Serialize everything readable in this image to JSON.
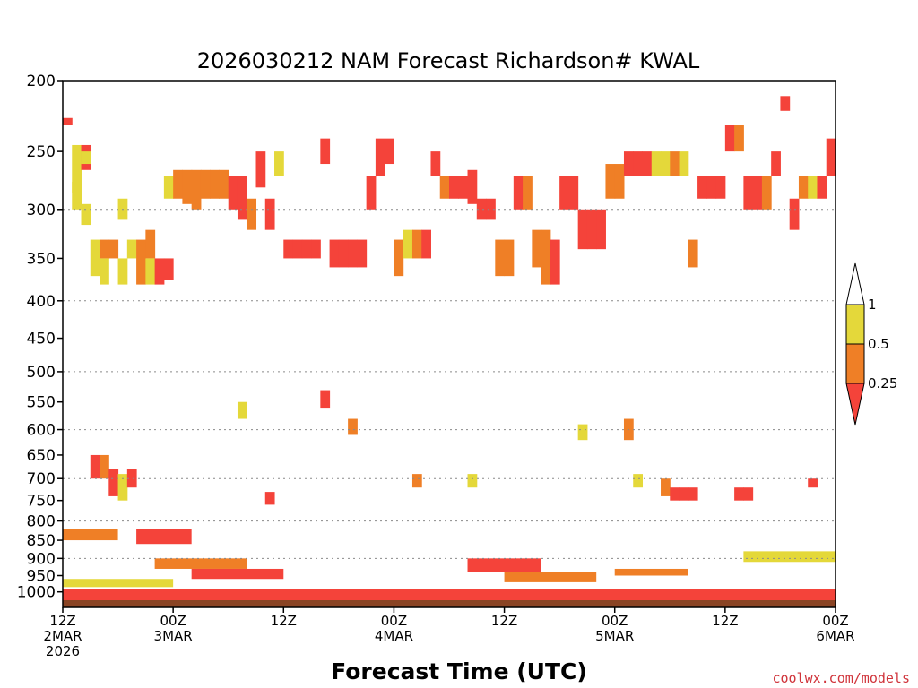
{
  "chart_data": {
    "type": "heatmap",
    "title": "2026030212 NAM Forecast Richardson# KWAL",
    "xlabel": "Forecast Time (UTC)",
    "ylabel": "",
    "credit": "coolwx.com/models",
    "y_scale": "log-pressure",
    "ylim": [
      1050,
      200
    ],
    "xlim_hours": [
      0,
      84
    ],
    "y_ticks": [
      200,
      250,
      300,
      350,
      400,
      450,
      500,
      550,
      600,
      650,
      700,
      750,
      800,
      850,
      900,
      950,
      1000
    ],
    "x_ticks": [
      {
        "hour": 0,
        "line1": "12Z",
        "line2": "2MAR",
        "line3": "2026"
      },
      {
        "hour": 12,
        "line1": "00Z",
        "line2": "3MAR",
        "line3": ""
      },
      {
        "hour": 24,
        "line1": "12Z",
        "line2": "",
        "line3": ""
      },
      {
        "hour": 36,
        "line1": "00Z",
        "line2": "4MAR",
        "line3": ""
      },
      {
        "hour": 48,
        "line1": "12Z",
        "line2": "",
        "line3": ""
      },
      {
        "hour": 60,
        "line1": "00Z",
        "line2": "5MAR",
        "line3": ""
      },
      {
        "hour": 72,
        "line1": "12Z",
        "line2": "",
        "line3": ""
      },
      {
        "hour": 84,
        "line1": "00Z",
        "line2": "6MAR",
        "line3": ""
      }
    ],
    "dotted_gridlines_hPa": [
      300,
      400,
      500,
      600,
      700,
      800,
      900
    ],
    "legend": {
      "labels": [
        "1",
        "0.5",
        "0.25"
      ],
      "bins": [
        {
          "range": "> 1",
          "color": "#ffffff"
        },
        {
          "range": "0.5 - 1",
          "color": "#e4d83a"
        },
        {
          "range": "0.25 - 0.5",
          "color": "#ef7f26"
        },
        {
          "range": "< 0.25",
          "color": "#f4433a"
        }
      ]
    },
    "colors": {
      "low": "#f4433a",
      "mid": "#ef7f26",
      "high": "#e4d83a",
      "ground": "#8a4424"
    },
    "category_codes": {
      "1": "Ri 0.5-1",
      "2": "Ri 0.25-0.5",
      "3": "Ri < 0.25"
    },
    "cells": [
      {
        "h": 0,
        "p": [
          225,
          230
        ],
        "c": 3
      },
      {
        "h": 1,
        "p": [
          245,
          300
        ],
        "c": 1
      },
      {
        "h": 1,
        "p": [
          275,
          285
        ],
        "c": 1
      },
      {
        "h": 2,
        "p": [
          245,
          265
        ],
        "c": 3
      },
      {
        "h": 2,
        "p": [
          250,
          260
        ],
        "c": 1
      },
      {
        "h": 2,
        "p": [
          295,
          315
        ],
        "c": 1
      },
      {
        "h": 3,
        "p": [
          330,
          370
        ],
        "c": 1
      },
      {
        "h": 4,
        "p": [
          330,
          350
        ],
        "c": 2
      },
      {
        "h": 4,
        "p": [
          350,
          380
        ],
        "c": 1
      },
      {
        "h": 5,
        "p": [
          330,
          350
        ],
        "c": 2
      },
      {
        "h": 6,
        "p": [
          290,
          310
        ],
        "c": 1
      },
      {
        "h": 6,
        "p": [
          350,
          380
        ],
        "c": 1
      },
      {
        "h": 7,
        "p": [
          330,
          350
        ],
        "c": 1
      },
      {
        "h": 8,
        "p": [
          330,
          380
        ],
        "c": 2
      },
      {
        "h": 9,
        "p": [
          320,
          350
        ],
        "c": 2
      },
      {
        "h": 9,
        "p": [
          350,
          380
        ],
        "c": 1
      },
      {
        "h": 10,
        "p": [
          350,
          380
        ],
        "c": 3
      },
      {
        "h": 11,
        "p": [
          270,
          290
        ],
        "c": 1
      },
      {
        "h": 11,
        "p": [
          350,
          375
        ],
        "c": 3
      },
      {
        "h": 12,
        "p": [
          265,
          290
        ],
        "c": 2
      },
      {
        "h": 13,
        "p": [
          265,
          295
        ],
        "c": 2
      },
      {
        "h": 14,
        "p": [
          265,
          300
        ],
        "c": 2
      },
      {
        "h": 15,
        "p": [
          265,
          290
        ],
        "c": 2
      },
      {
        "h": 16,
        "p": [
          265,
          290
        ],
        "c": 2
      },
      {
        "h": 17,
        "p": [
          265,
          290
        ],
        "c": 2
      },
      {
        "h": 18,
        "p": [
          270,
          300
        ],
        "c": 3
      },
      {
        "h": 19,
        "p": [
          270,
          310
        ],
        "c": 3
      },
      {
        "h": 20,
        "p": [
          290,
          320
        ],
        "c": 2
      },
      {
        "h": 21,
        "p": [
          250,
          280
        ],
        "c": 3
      },
      {
        "h": 22,
        "p": [
          290,
          320
        ],
        "c": 3
      },
      {
        "h": 23,
        "p": [
          250,
          270
        ],
        "c": 1
      },
      {
        "h": 24,
        "p": [
          330,
          350
        ],
        "c": 3
      },
      {
        "h": 25,
        "p": [
          330,
          350
        ],
        "c": 3
      },
      {
        "h": 26,
        "p": [
          330,
          350
        ],
        "c": 3
      },
      {
        "h": 27,
        "p": [
          330,
          350
        ],
        "c": 3
      },
      {
        "h": 28,
        "p": [
          240,
          260
        ],
        "c": 3
      },
      {
        "h": 29,
        "p": [
          330,
          360
        ],
        "c": 3
      },
      {
        "h": 30,
        "p": [
          330,
          360
        ],
        "c": 3
      },
      {
        "h": 31,
        "p": [
          330,
          360
        ],
        "c": 3
      },
      {
        "h": 32,
        "p": [
          330,
          360
        ],
        "c": 3
      },
      {
        "h": 33,
        "p": [
          270,
          300
        ],
        "c": 3
      },
      {
        "h": 34,
        "p": [
          240,
          270
        ],
        "c": 3
      },
      {
        "h": 35,
        "p": [
          240,
          260
        ],
        "c": 3
      },
      {
        "h": 36,
        "p": [
          330,
          370
        ],
        "c": 2
      },
      {
        "h": 37,
        "p": [
          320,
          350
        ],
        "c": 1
      },
      {
        "h": 38,
        "p": [
          320,
          350
        ],
        "c": 2
      },
      {
        "h": 39,
        "p": [
          320,
          350
        ],
        "c": 3
      },
      {
        "h": 40,
        "p": [
          250,
          270
        ],
        "c": 3
      },
      {
        "h": 41,
        "p": [
          270,
          290
        ],
        "c": 2
      },
      {
        "h": 42,
        "p": [
          270,
          290
        ],
        "c": 3
      },
      {
        "h": 43,
        "p": [
          270,
          290
        ],
        "c": 3
      },
      {
        "h": 44,
        "p": [
          265,
          295
        ],
        "c": 3
      },
      {
        "h": 45,
        "p": [
          290,
          310
        ],
        "c": 3
      },
      {
        "h": 46,
        "p": [
          290,
          310
        ],
        "c": 3
      },
      {
        "h": 47,
        "p": [
          330,
          370
        ],
        "c": 2
      },
      {
        "h": 48,
        "p": [
          330,
          370
        ],
        "c": 2
      },
      {
        "h": 49,
        "p": [
          270,
          300
        ],
        "c": 3
      },
      {
        "h": 50,
        "p": [
          270,
          300
        ],
        "c": 2
      },
      {
        "h": 51,
        "p": [
          320,
          360
        ],
        "c": 2
      },
      {
        "h": 52,
        "p": [
          320,
          380
        ],
        "c": 2
      },
      {
        "h": 53,
        "p": [
          330,
          380
        ],
        "c": 3
      },
      {
        "h": 54,
        "p": [
          270,
          300
        ],
        "c": 3
      },
      {
        "h": 55,
        "p": [
          270,
          300
        ],
        "c": 3
      },
      {
        "h": 56,
        "p": [
          300,
          340
        ],
        "c": 3
      },
      {
        "h": 57,
        "p": [
          300,
          340
        ],
        "c": 3
      },
      {
        "h": 58,
        "p": [
          300,
          340
        ],
        "c": 3
      },
      {
        "h": 59,
        "p": [
          260,
          290
        ],
        "c": 2
      },
      {
        "h": 60,
        "p": [
          260,
          290
        ],
        "c": 2
      },
      {
        "h": 61,
        "p": [
          250,
          270
        ],
        "c": 3
      },
      {
        "h": 62,
        "p": [
          250,
          270
        ],
        "c": 3
      },
      {
        "h": 63,
        "p": [
          250,
          270
        ],
        "c": 3
      },
      {
        "h": 64,
        "p": [
          250,
          270
        ],
        "c": 1
      },
      {
        "h": 65,
        "p": [
          250,
          270
        ],
        "c": 1
      },
      {
        "h": 66,
        "p": [
          250,
          270
        ],
        "c": 2
      },
      {
        "h": 67,
        "p": [
          250,
          270
        ],
        "c": 1
      },
      {
        "h": 68,
        "p": [
          330,
          360
        ],
        "c": 2
      },
      {
        "h": 69,
        "p": [
          270,
          290
        ],
        "c": 3
      },
      {
        "h": 70,
        "p": [
          270,
          290
        ],
        "c": 3
      },
      {
        "h": 71,
        "p": [
          270,
          290
        ],
        "c": 3
      },
      {
        "h": 72,
        "p": [
          230,
          250
        ],
        "c": 3
      },
      {
        "h": 73,
        "p": [
          230,
          250
        ],
        "c": 2
      },
      {
        "h": 74,
        "p": [
          270,
          300
        ],
        "c": 3
      },
      {
        "h": 75,
        "p": [
          270,
          300
        ],
        "c": 3
      },
      {
        "h": 76,
        "p": [
          270,
          300
        ],
        "c": 2
      },
      {
        "h": 77,
        "p": [
          250,
          270
        ],
        "c": 3
      },
      {
        "h": 78,
        "p": [
          210,
          220
        ],
        "c": 3
      },
      {
        "h": 79,
        "p": [
          290,
          320
        ],
        "c": 3
      },
      {
        "h": 80,
        "p": [
          270,
          290
        ],
        "c": 2
      },
      {
        "h": 81,
        "p": [
          270,
          290
        ],
        "c": 1
      },
      {
        "h": 82,
        "p": [
          270,
          290
        ],
        "c": 3
      },
      {
        "h": 83,
        "p": [
          240,
          270
        ],
        "c": 3
      },
      {
        "h": 3,
        "p": [
          650,
          700
        ],
        "c": 3
      },
      {
        "h": 4,
        "p": [
          650,
          700
        ],
        "c": 2
      },
      {
        "h": 5,
        "p": [
          680,
          740
        ],
        "c": 3
      },
      {
        "h": 6,
        "p": [
          690,
          750
        ],
        "c": 1
      },
      {
        "h": 7,
        "p": [
          680,
          720
        ],
        "c": 3
      },
      {
        "h": 19,
        "p": [
          550,
          580
        ],
        "c": 1
      },
      {
        "h": 22,
        "p": [
          730,
          760
        ],
        "c": 3
      },
      {
        "h": 28,
        "p": [
          530,
          560
        ],
        "c": 3
      },
      {
        "h": 31,
        "p": [
          580,
          610
        ],
        "c": 2
      },
      {
        "h": 38,
        "p": [
          690,
          720
        ],
        "c": 2
      },
      {
        "h": 44,
        "p": [
          690,
          720
        ],
        "c": 1
      },
      {
        "h": 56,
        "p": [
          590,
          620
        ],
        "c": 1
      },
      {
        "h": 61,
        "p": [
          580,
          620
        ],
        "c": 2
      },
      {
        "h": 62,
        "p": [
          690,
          720
        ],
        "c": 1
      },
      {
        "h": 65,
        "p": [
          700,
          740
        ],
        "c": 2
      },
      {
        "h": 66,
        "p": [
          720,
          750
        ],
        "c": 3
      },
      {
        "h": 67,
        "p": [
          720,
          750
        ],
        "c": 3
      },
      {
        "h": 68,
        "p": [
          720,
          750
        ],
        "c": 3
      },
      {
        "h": 73,
        "p": [
          720,
          750
        ],
        "c": 3
      },
      {
        "h": 74,
        "p": [
          720,
          750
        ],
        "c": 3
      },
      {
        "h": 81,
        "p": [
          700,
          720
        ],
        "c": 3
      }
    ],
    "low_level": [
      {
        "h0": 0,
        "h1": 84,
        "p": [
          990,
          1050
        ],
        "c": 3
      },
      {
        "h0": 0,
        "h1": 12,
        "p": [
          960,
          985
        ],
        "c": 1
      },
      {
        "h0": 0,
        "h1": 6,
        "p": [
          820,
          850
        ],
        "c": 2
      },
      {
        "h0": 8,
        "h1": 14,
        "p": [
          820,
          860
        ],
        "c": 3
      },
      {
        "h0": 10,
        "h1": 20,
        "p": [
          900,
          930
        ],
        "c": 2
      },
      {
        "h0": 14,
        "h1": 24,
        "p": [
          930,
          960
        ],
        "c": 3
      },
      {
        "h0": 44,
        "h1": 52,
        "p": [
          900,
          940
        ],
        "c": 3
      },
      {
        "h0": 48,
        "h1": 58,
        "p": [
          940,
          970
        ],
        "c": 2
      },
      {
        "h0": 60,
        "h1": 68,
        "p": [
          930,
          950
        ],
        "c": 2
      },
      {
        "h0": 74,
        "h1": 84,
        "p": [
          880,
          910
        ],
        "c": 1
      }
    ]
  }
}
